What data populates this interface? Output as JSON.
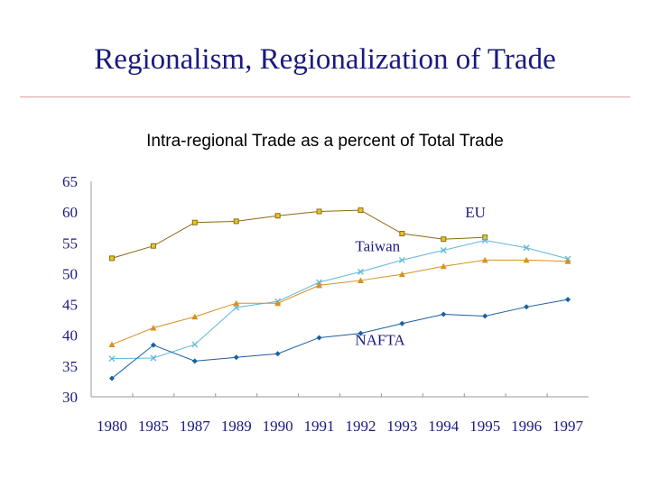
{
  "slide": {
    "title": "Regionalism, Regionalization of Trade"
  },
  "chart_data": {
    "type": "line",
    "title": "Intra-regional Trade as a percent of Total Trade",
    "categories": [
      "1980",
      "1985",
      "1987",
      "1989",
      "1990",
      "1991",
      "1992",
      "1993",
      "1994",
      "1995",
      "1996",
      "1997"
    ],
    "ylim": [
      30,
      65
    ],
    "yticks": [
      30,
      35,
      40,
      45,
      50,
      55,
      60,
      65
    ],
    "grid": false,
    "series": [
      {
        "name": "EU",
        "color": "#8b6914",
        "marker": "square",
        "values": [
          52.5,
          54.5,
          58.3,
          58.5,
          59.4,
          60.1,
          60.3,
          56.5,
          55.6,
          55.9,
          null,
          null
        ]
      },
      {
        "name": "Taiwan",
        "color": "#5fb8d8",
        "marker": "cross",
        "values": [
          36.2,
          36.3,
          38.5,
          44.5,
          45.5,
          48.6,
          50.3,
          52.2,
          53.8,
          55.4,
          54.2,
          52.4
        ]
      },
      {
        "name": "",
        "color": "#d89020",
        "marker": "triangle",
        "values": [
          38.5,
          41.2,
          43.0,
          45.2,
          45.2,
          48.1,
          48.9,
          49.9,
          51.2,
          52.2,
          52.2,
          52.0
        ]
      },
      {
        "name": "NAFTA",
        "color": "#1a5fa0",
        "marker": "diamond",
        "values": [
          33.0,
          38.4,
          35.8,
          36.4,
          37.0,
          39.6,
          40.3,
          41.9,
          43.4,
          43.1,
          44.6,
          45.8
        ]
      }
    ],
    "annotations": [
      {
        "text": "EU",
        "x_index": 9,
        "y": 60
      },
      {
        "text": "Taiwan",
        "x_index": 7,
        "y": 54.5
      },
      {
        "text": "NAFTA",
        "x_index": 7,
        "y": 39.3
      }
    ]
  }
}
